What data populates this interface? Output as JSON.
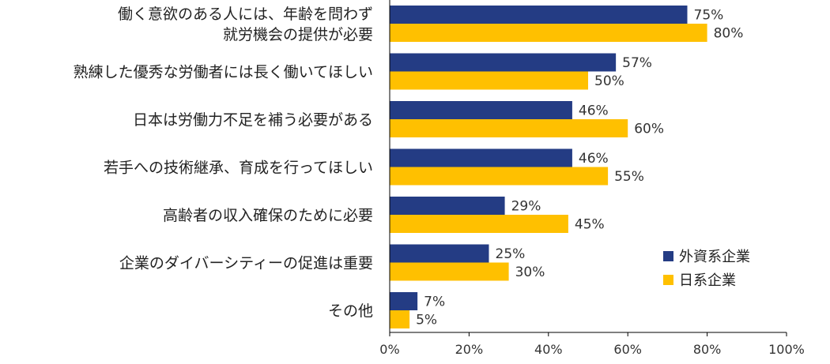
{
  "chart_data": {
    "type": "bar",
    "orientation": "horizontal",
    "categories": [
      [
        "働く意欲のある人には、年齢を問わず",
        "就労機会の提供が必要"
      ],
      [
        "熟練した優秀な労働者には長く働いてほしい"
      ],
      [
        "日本は労働力不足を補う必要がある"
      ],
      [
        "若手への技術継承、育成を行ってほしい"
      ],
      [
        "高齢者の収入確保のために必要"
      ],
      [
        "企業のダイバーシティーの促進は重要"
      ],
      [
        "その他"
      ]
    ],
    "series": [
      {
        "name": "外資系企業",
        "color": "#243c84",
        "values": [
          75,
          57,
          46,
          46,
          29,
          25,
          7
        ]
      },
      {
        "name": "日系企業",
        "color": "#ffc000",
        "values": [
          80,
          50,
          60,
          55,
          45,
          30,
          5
        ]
      }
    ],
    "value_suffix": "%",
    "xlim": [
      0,
      100
    ],
    "xticks": [
      "0%",
      "20%",
      "40%",
      "60%",
      "80%",
      "100%"
    ],
    "grid": false,
    "legend_position": "bottom-right",
    "title": "",
    "xlabel": "",
    "ylabel": ""
  }
}
